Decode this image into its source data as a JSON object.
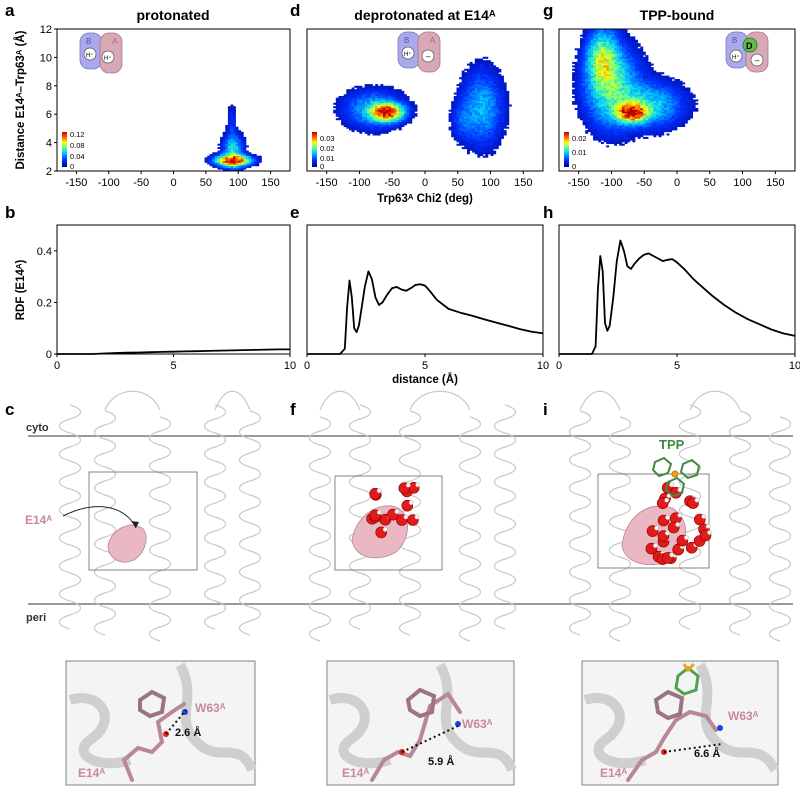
{
  "panel_letters": [
    "a",
    "b",
    "c",
    "d",
    "e",
    "f",
    "g",
    "h",
    "i"
  ],
  "heatmap_titles": [
    "protonated",
    "deprotonated at E14ᴬ",
    "TPP-bound"
  ],
  "heatmap_axes": {
    "ylabel": "Distance E14ᴬ–Trp63ᴬ (Å)",
    "xlabel": "Trp63ᴬ Chi2 (deg)",
    "xticks": [
      "-150",
      "-100",
      "-50",
      "0",
      "50",
      "100",
      "150"
    ],
    "yticks": [
      "2",
      "4",
      "6",
      "8",
      "10",
      "12"
    ]
  },
  "colorbars": [
    {
      "labels": [
        "0.12",
        "0.08",
        "0.04",
        "0"
      ]
    },
    {
      "labels": [
        "0.03",
        "0.02",
        "0.01",
        "0"
      ]
    },
    {
      "labels": [
        "0.02",
        "0.01",
        "0"
      ]
    }
  ],
  "rdf_axes": {
    "ylabel": "RDF (E14ᴬ)",
    "xlabel": "distance (Å)",
    "xticks": [
      "0",
      "5",
      "10"
    ],
    "yticks": [
      "0",
      "0.2",
      "0.4"
    ]
  },
  "structure_labels": {
    "cyto": "cyto",
    "peri": "peri",
    "e14": "E14ᴬ",
    "tpp": "TPP"
  },
  "inset_labels": {
    "w63": "W63ᴬ",
    "e14": "E14ᴬ",
    "distances": [
      "2.6 Å",
      "5.9 Å",
      "6.6 Å"
    ]
  },
  "schematic_labels": {
    "b": "B",
    "a": "A",
    "h": "H⁺",
    "minus": "–",
    "d": "D"
  },
  "colors": {
    "line": "#000000",
    "heat_low": "#0000a8",
    "heat_high": "#ff2000",
    "pink": "#d9a4b0",
    "membrane": "#999999",
    "tpp": "#3e8a3e"
  },
  "chart_data": [
    {
      "type": "heatmap",
      "title": "protonated",
      "xlabel": "Trp63ᴬ Chi2 (deg)",
      "ylabel": "Distance E14ᴬ–Trp63ᴬ (Å)",
      "xlim": [
        -180,
        180
      ],
      "ylim": [
        2,
        12
      ],
      "colorbar_max": 0.12,
      "density_blobs": [
        {
          "x": 90,
          "y": 2.7,
          "sx": 15,
          "sy": 0.22,
          "w": 1.0
        },
        {
          "x": 90,
          "y": 3.3,
          "sx": 9,
          "sy": 0.7,
          "w": 0.25
        },
        {
          "x": 88,
          "y": 5.2,
          "sx": 4,
          "sy": 0.9,
          "w": 0.05
        }
      ]
    },
    {
      "type": "heatmap",
      "title": "deprotonated at E14ᴬ",
      "xlabel": "Trp63ᴬ Chi2 (deg)",
      "xlim": [
        -180,
        180
      ],
      "ylim": [
        2,
        12
      ],
      "colorbar_max": 0.03,
      "density_blobs": [
        {
          "x": -60,
          "y": 6.1,
          "sx": 14,
          "sy": 0.35,
          "w": 1.0
        },
        {
          "x": -80,
          "y": 6.3,
          "sx": 26,
          "sy": 0.75,
          "w": 0.18
        },
        {
          "x": 85,
          "y": 6.4,
          "sx": 18,
          "sy": 1.5,
          "w": 0.17
        },
        {
          "x": 55,
          "y": 5.5,
          "sx": 10,
          "sy": 0.8,
          "w": 0.07
        }
      ]
    },
    {
      "type": "heatmap",
      "title": "TPP-bound",
      "xlabel": "Trp63ᴬ Chi2 (deg)",
      "xlim": [
        -180,
        180
      ],
      "ylim": [
        2,
        12
      ],
      "colorbar_max": 0.02,
      "density_blobs": [
        {
          "x": -70,
          "y": 6.1,
          "sx": 14,
          "sy": 0.4,
          "w": 1.0
        },
        {
          "x": -115,
          "y": 9.8,
          "sx": 14,
          "sy": 1.2,
          "w": 0.42
        },
        {
          "x": -100,
          "y": 7.8,
          "sx": 24,
          "sy": 1.6,
          "w": 0.3
        },
        {
          "x": -45,
          "y": 6.6,
          "sx": 30,
          "sy": 0.9,
          "w": 0.22
        }
      ]
    },
    {
      "type": "line",
      "ylabel": "RDF (E14ᴬ)",
      "xlim": [
        0,
        10
      ],
      "ylim": [
        0,
        0.5
      ],
      "x": [
        0,
        1,
        1.5,
        2,
        2.5,
        3,
        3.5,
        4,
        4.5,
        5,
        5.5,
        6,
        6.5,
        7,
        7.5,
        8,
        8.5,
        9,
        9.5,
        10
      ],
      "y": [
        0,
        0,
        0,
        0.002,
        0.004,
        0.005,
        0.006,
        0.007,
        0.008,
        0.009,
        0.01,
        0.011,
        0.012,
        0.013,
        0.014,
        0.015,
        0.016,
        0.017,
        0.018,
        0.018
      ]
    },
    {
      "type": "line",
      "xlabel": "distance (Å)",
      "xlim": [
        0,
        10
      ],
      "ylim": [
        0,
        0.5
      ],
      "x": [
        0,
        1.4,
        1.6,
        1.7,
        1.8,
        1.9,
        2.0,
        2.1,
        2.2,
        2.3,
        2.45,
        2.6,
        2.75,
        2.9,
        3.05,
        3.2,
        3.4,
        3.6,
        3.8,
        4.0,
        4.2,
        4.4,
        4.6,
        4.8,
        5.0,
        5.2,
        5.5,
        6.0,
        6.5,
        7.0,
        7.5,
        8.0,
        8.5,
        9.0,
        9.5,
        10.0
      ],
      "y": [
        0,
        0,
        0.02,
        0.18,
        0.285,
        0.22,
        0.1,
        0.085,
        0.11,
        0.17,
        0.26,
        0.32,
        0.29,
        0.22,
        0.19,
        0.2,
        0.23,
        0.255,
        0.26,
        0.25,
        0.245,
        0.255,
        0.268,
        0.27,
        0.265,
        0.245,
        0.21,
        0.175,
        0.16,
        0.148,
        0.135,
        0.122,
        0.11,
        0.097,
        0.087,
        0.08
      ]
    },
    {
      "type": "line",
      "xlim": [
        0,
        10
      ],
      "ylim": [
        0,
        0.5
      ],
      "x": [
        0,
        1.4,
        1.55,
        1.65,
        1.75,
        1.85,
        1.95,
        2.05,
        2.15,
        2.3,
        2.45,
        2.6,
        2.75,
        2.9,
        3.05,
        3.2,
        3.4,
        3.6,
        3.8,
        4.0,
        4.2,
        4.4,
        4.6,
        4.8,
        5.0,
        5.3,
        5.7,
        6.0,
        6.5,
        7.0,
        7.5,
        8.0,
        8.5,
        9.0,
        9.5,
        10.0
      ],
      "y": [
        0,
        0,
        0.03,
        0.25,
        0.38,
        0.32,
        0.12,
        0.09,
        0.11,
        0.22,
        0.36,
        0.44,
        0.4,
        0.34,
        0.33,
        0.35,
        0.37,
        0.385,
        0.39,
        0.38,
        0.37,
        0.36,
        0.365,
        0.368,
        0.355,
        0.33,
        0.29,
        0.265,
        0.225,
        0.19,
        0.16,
        0.135,
        0.115,
        0.095,
        0.08,
        0.07
      ]
    }
  ]
}
